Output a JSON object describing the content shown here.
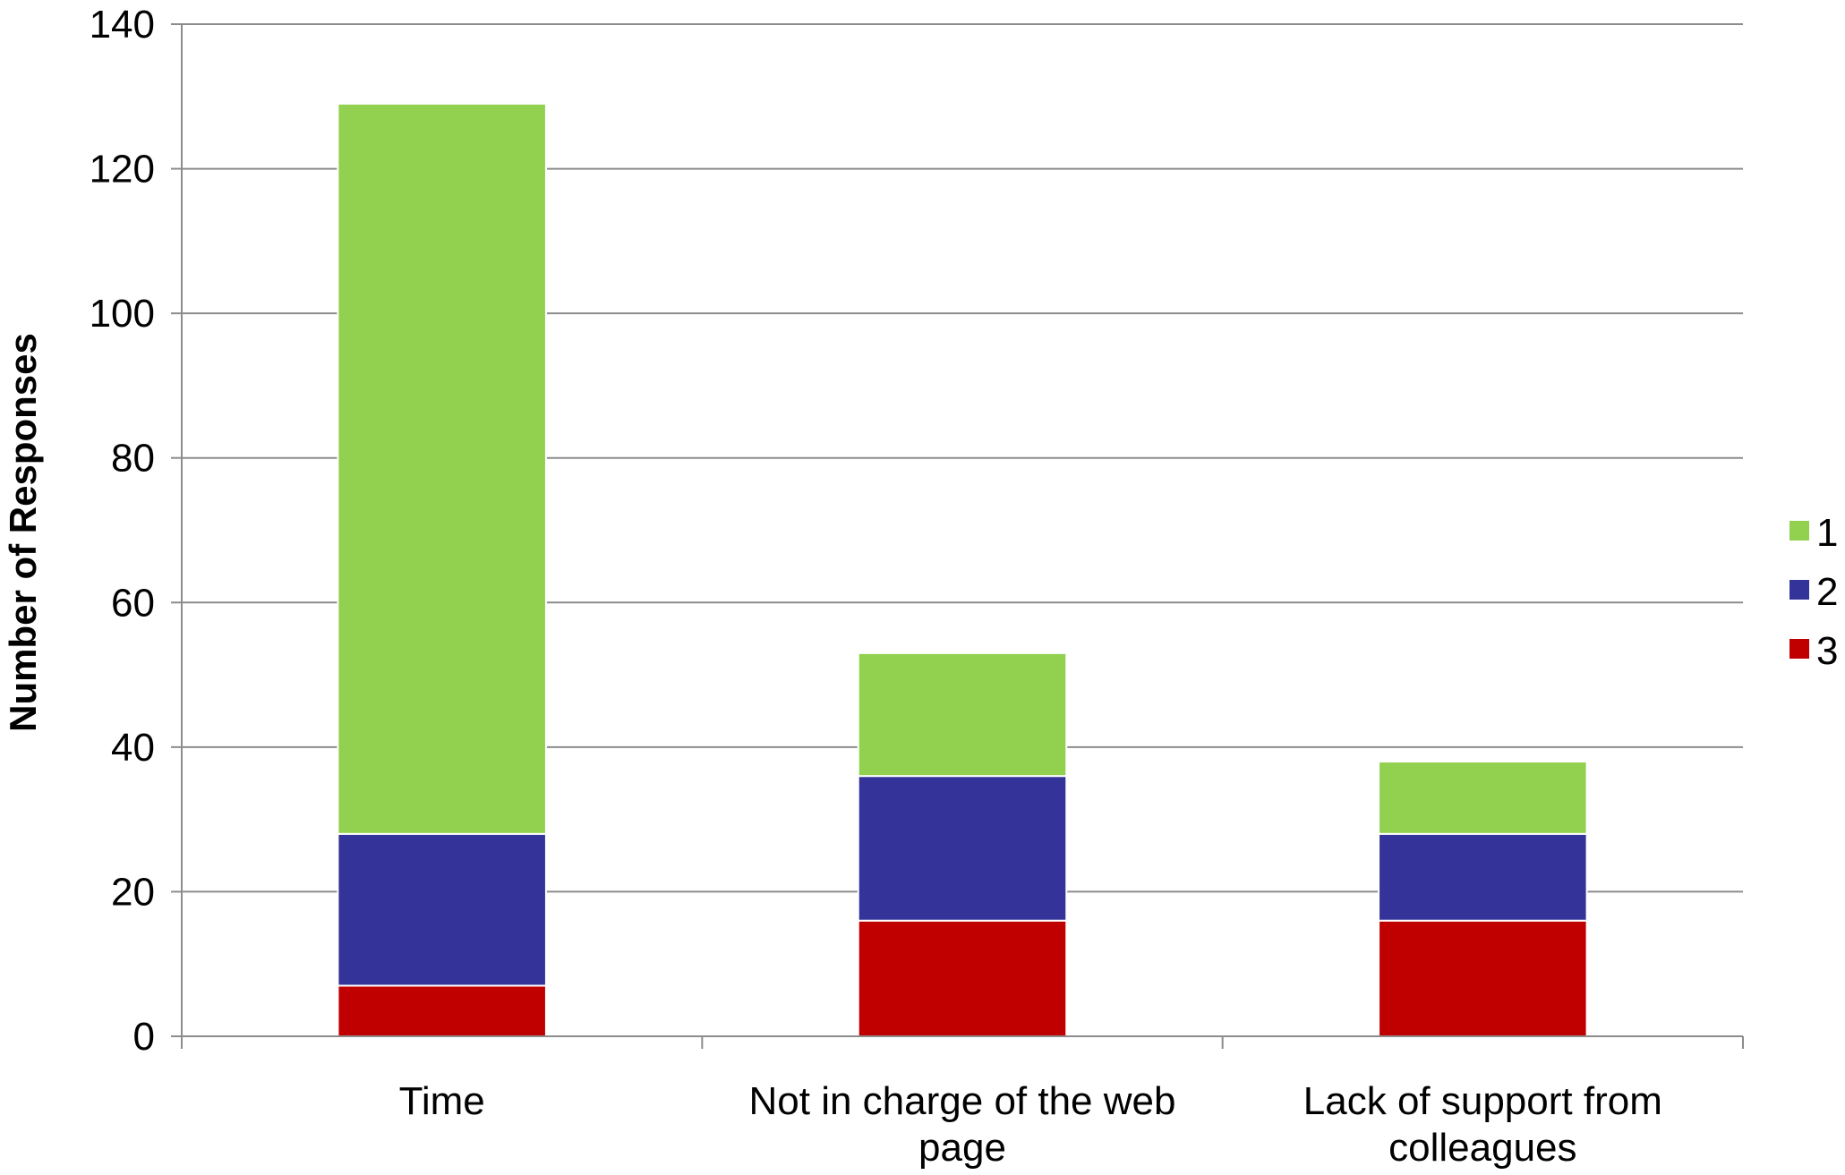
{
  "chart_data": {
    "type": "bar",
    "stacked": true,
    "title": "",
    "xlabel": "",
    "ylabel": "Number of Responses",
    "ylim": [
      0,
      140
    ],
    "yticks": [
      0,
      20,
      40,
      60,
      80,
      100,
      120,
      140
    ],
    "grid": true,
    "legend_position": "right",
    "categories": [
      [
        "Time"
      ],
      [
        "Not in charge of the web",
        "page"
      ],
      [
        "Lack of support from",
        "colleagues"
      ]
    ],
    "series": [
      {
        "name": "3",
        "color": "#c00000",
        "values": [
          7,
          16,
          16
        ]
      },
      {
        "name": "2",
        "color": "#333399",
        "values": [
          21,
          20,
          12
        ]
      },
      {
        "name": "1",
        "color": "#92d050",
        "values": [
          101,
          17,
          10
        ]
      }
    ],
    "legend_order": [
      "1",
      "2",
      "3"
    ]
  }
}
